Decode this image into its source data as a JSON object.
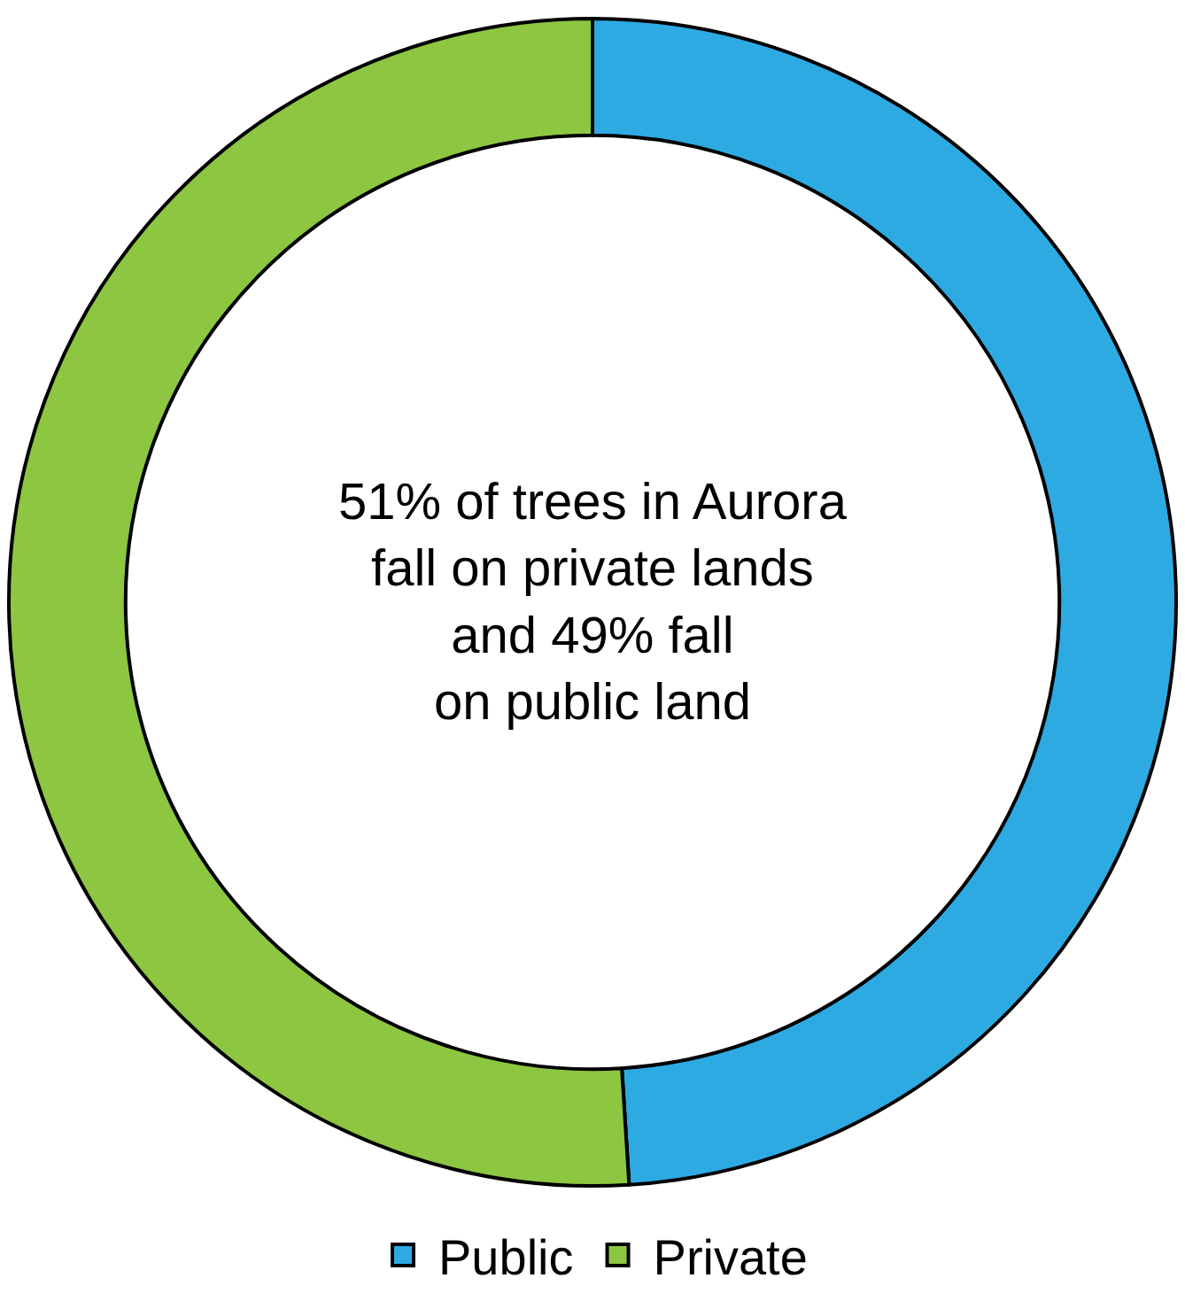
{
  "chart_data": {
    "type": "donut",
    "categories": [
      "Public",
      "Private"
    ],
    "values": [
      49,
      51
    ],
    "colors": [
      "#2eaae2",
      "#8dc641"
    ],
    "annotations": [
      "51% of trees in Aurora\nfall on private lands\nand 49% fall\non public land"
    ],
    "legend": "bottom"
  }
}
